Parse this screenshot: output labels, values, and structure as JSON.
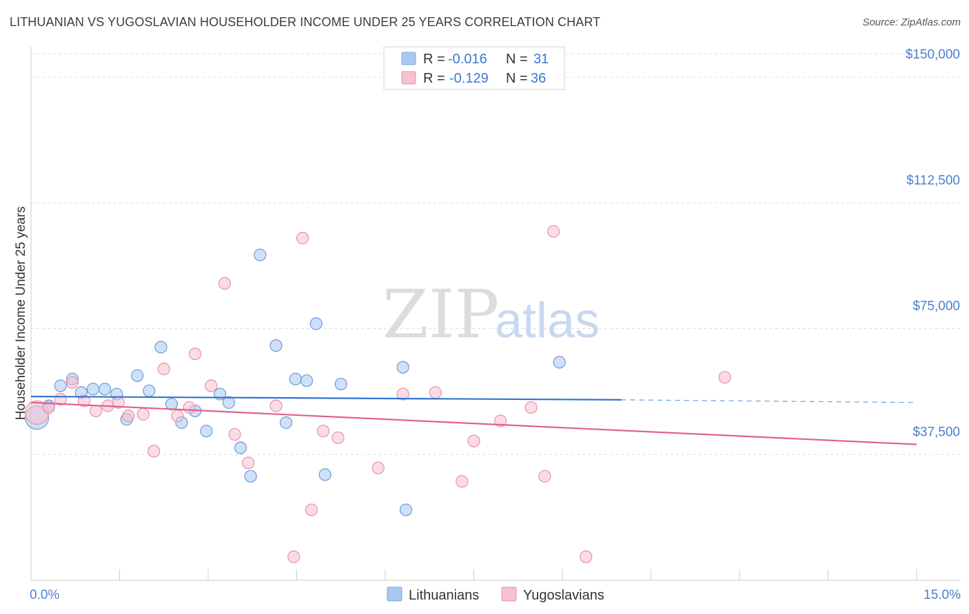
{
  "title": "LITHUANIAN VS YUGOSLAVIAN HOUSEHOLDER INCOME UNDER 25 YEARS CORRELATION CHART",
  "source": "Source: ZipAtlas.com",
  "watermark": {
    "zip": "ZIP",
    "atlas": "atlas"
  },
  "legend": {
    "r_label": "R =",
    "n_label": "N =",
    "rows": [
      {
        "name": "Lithuanians",
        "r": "-0.016",
        "n": "31",
        "color": "#a8c8f0",
        "stroke": "#7aa8e0"
      },
      {
        "name": "Yugoslavians",
        "r": "-0.129",
        "n": "36",
        "color": "#f8c0d0",
        "stroke": "#e890a8"
      }
    ]
  },
  "chart_data": {
    "type": "scatter",
    "title": "LITHUANIAN VS YUGOSLAVIAN HOUSEHOLDER INCOME UNDER 25 YEARS CORRELATION CHART",
    "xlabel": "",
    "ylabel": "Householder Income Under 25 years",
    "xlim": [
      0,
      15
    ],
    "ylim": [
      0,
      157000
    ],
    "x_tick_labels": {
      "min": "0.0%",
      "max": "15.0%"
    },
    "y_ticks": [
      {
        "value": 37500,
        "label": "$37,500"
      },
      {
        "value": 75000,
        "label": "$75,000"
      },
      {
        "value": 112500,
        "label": "$112,500"
      },
      {
        "value": 150000,
        "label": "$150,000"
      }
    ],
    "series": [
      {
        "name": "Lithuanians",
        "color": "#a8c8f0",
        "stroke": "#6b9ad8",
        "line_color": "#2f74d0",
        "trend": {
          "x0": 0.0,
          "y0": 54800,
          "x1": 10.0,
          "y1": 53800,
          "dash_to_x": 15.0,
          "dash_y": 53000
        },
        "points": [
          {
            "x": 0.1,
            "y": 48500,
            "big": true
          },
          {
            "x": 0.3,
            "y": 52000
          },
          {
            "x": 0.5,
            "y": 58000
          },
          {
            "x": 0.7,
            "y": 60000
          },
          {
            "x": 0.85,
            "y": 56000
          },
          {
            "x": 1.05,
            "y": 57000
          },
          {
            "x": 1.25,
            "y": 57000
          },
          {
            "x": 1.45,
            "y": 55500
          },
          {
            "x": 1.62,
            "y": 48000
          },
          {
            "x": 1.8,
            "y": 61000
          },
          {
            "x": 2.0,
            "y": 56500
          },
          {
            "x": 2.2,
            "y": 69500
          },
          {
            "x": 2.38,
            "y": 52500
          },
          {
            "x": 2.55,
            "y": 47000
          },
          {
            "x": 2.78,
            "y": 50500
          },
          {
            "x": 2.97,
            "y": 44500
          },
          {
            "x": 3.2,
            "y": 55500
          },
          {
            "x": 3.35,
            "y": 53000
          },
          {
            "x": 3.55,
            "y": 39500
          },
          {
            "x": 3.72,
            "y": 31000
          },
          {
            "x": 3.88,
            "y": 97000
          },
          {
            "x": 4.15,
            "y": 70000
          },
          {
            "x": 4.32,
            "y": 47000
          },
          {
            "x": 4.48,
            "y": 60000
          },
          {
            "x": 4.67,
            "y": 59500
          },
          {
            "x": 4.83,
            "y": 76500
          },
          {
            "x": 4.98,
            "y": 31500
          },
          {
            "x": 5.25,
            "y": 58500
          },
          {
            "x": 6.3,
            "y": 63500
          },
          {
            "x": 6.35,
            "y": 21000
          },
          {
            "x": 8.95,
            "y": 65000
          }
        ]
      },
      {
        "name": "Yugoslavians",
        "color": "#f8c0d0",
        "stroke": "#e890a8",
        "line_color": "#e0608a",
        "trend": {
          "x0": 0.0,
          "y0": 53000,
          "x1": 15.0,
          "y1": 40500
        },
        "points": [
          {
            "x": 0.1,
            "y": 50000,
            "big": true
          },
          {
            "x": 0.3,
            "y": 51500
          },
          {
            "x": 0.5,
            "y": 54000
          },
          {
            "x": 0.7,
            "y": 59000
          },
          {
            "x": 0.9,
            "y": 53500
          },
          {
            "x": 1.1,
            "y": 50500
          },
          {
            "x": 1.3,
            "y": 52000
          },
          {
            "x": 1.48,
            "y": 53000
          },
          {
            "x": 1.65,
            "y": 49000
          },
          {
            "x": 1.9,
            "y": 49500
          },
          {
            "x": 2.08,
            "y": 38500
          },
          {
            "x": 2.25,
            "y": 63000
          },
          {
            "x": 2.48,
            "y": 49000
          },
          {
            "x": 2.68,
            "y": 51500
          },
          {
            "x": 2.78,
            "y": 67500
          },
          {
            "x": 3.05,
            "y": 58000
          },
          {
            "x": 3.28,
            "y": 88500
          },
          {
            "x": 3.45,
            "y": 43500
          },
          {
            "x": 3.68,
            "y": 35000
          },
          {
            "x": 4.15,
            "y": 52000
          },
          {
            "x": 4.45,
            "y": 7000
          },
          {
            "x": 4.6,
            "y": 102000
          },
          {
            "x": 4.75,
            "y": 21000
          },
          {
            "x": 4.95,
            "y": 44500
          },
          {
            "x": 5.2,
            "y": 42500
          },
          {
            "x": 5.88,
            "y": 33500
          },
          {
            "x": 6.3,
            "y": 55500
          },
          {
            "x": 6.85,
            "y": 56000
          },
          {
            "x": 7.3,
            "y": 29500
          },
          {
            "x": 7.5,
            "y": 41500
          },
          {
            "x": 7.95,
            "y": 47500
          },
          {
            "x": 8.47,
            "y": 51500
          },
          {
            "x": 8.7,
            "y": 31000
          },
          {
            "x": 8.85,
            "y": 104000
          },
          {
            "x": 9.4,
            "y": 7000
          },
          {
            "x": 11.75,
            "y": 60500
          }
        ]
      }
    ]
  }
}
